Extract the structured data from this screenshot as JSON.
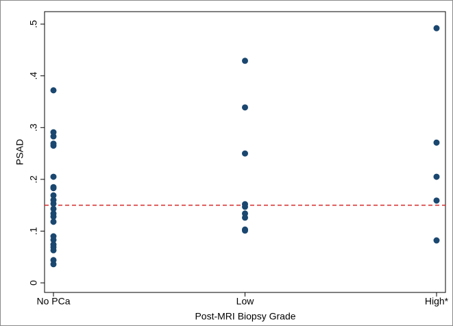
{
  "chart_data": {
    "type": "strip",
    "x_label": "Post-MRI Biopsy Grade",
    "y_label": "PSAD",
    "categories": [
      "No PCa",
      "Low",
      "High*"
    ],
    "values": [
      [
        0.372,
        0.291,
        0.283,
        0.269,
        0.265,
        0.205,
        0.185,
        0.183,
        0.169,
        0.16,
        0.153,
        0.143,
        0.134,
        0.128,
        0.118,
        0.09,
        0.083,
        0.074,
        0.069,
        0.063,
        0.044,
        0.036
      ],
      [
        0.429,
        0.339,
        0.25,
        0.152,
        0.147,
        0.134,
        0.126,
        0.103,
        0.101
      ],
      [
        0.492,
        0.271,
        0.205,
        0.159,
        0.082
      ]
    ],
    "color": "#1a476f",
    "reference_line": {
      "value": 0.15,
      "color": "#d62728",
      "style": "dashed"
    },
    "ylim": [
      -0.0185,
      0.524
    ],
    "yticks": [
      0,
      {
        "value": 0.1,
        "label": ".1"
      },
      {
        "value": 0.2,
        "label": ".2"
      },
      {
        "value": 0.3,
        "label": ".3"
      },
      {
        "value": 0.4,
        "label": ".4"
      },
      {
        "value": 0.5,
        "label": ".5"
      }
    ],
    "grid": false
  }
}
